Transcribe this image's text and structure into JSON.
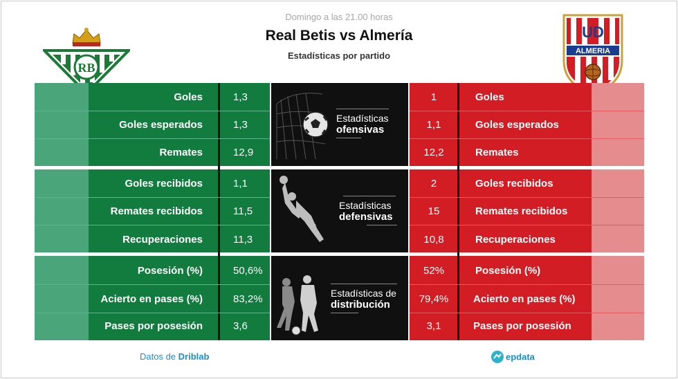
{
  "header": {
    "time": "Domingo a las 21.00 horas",
    "title": "Real Betis vs Almería",
    "subtitle": "Estadísticas por partido"
  },
  "teams": {
    "home": {
      "name": "Real Betis",
      "color": "#127b3e",
      "light_color": "#4ba57a",
      "logo_letters": "RB"
    },
    "away": {
      "name": "Almería",
      "color": "#d11d23",
      "light_color": "#e58c8f",
      "logo_letters": "UD",
      "logo_text": "ALMERIA"
    }
  },
  "sections": [
    {
      "panel_line1": "Estadísticas",
      "panel_line2": "ofensivas",
      "stats": [
        {
          "label": "Goles",
          "home": "1,3",
          "away": "1"
        },
        {
          "label": "Goles esperados",
          "home": "1,3",
          "away": "1,1"
        },
        {
          "label": "Remates",
          "home": "12,9",
          "away": "12,2"
        }
      ]
    },
    {
      "panel_line1": "Estadísticas",
      "panel_line2": "defensivas",
      "stats": [
        {
          "label": "Goles recibidos",
          "home": "1,1",
          "away": "2"
        },
        {
          "label": "Remates recibidos",
          "home": "11,5",
          "away": "15"
        },
        {
          "label": "Recuperaciones",
          "home": "11,3",
          "away": "10,8"
        }
      ]
    },
    {
      "panel_line1": "Estadísticas de",
      "panel_line2": "distribución",
      "stats": [
        {
          "label": "Posesión (%)",
          "home": "50,6%",
          "away": "52%"
        },
        {
          "label": "Acierto en pases (%)",
          "home": "83,2%",
          "away": "79,4%"
        },
        {
          "label": "Pases por posesión",
          "home": "3,6",
          "away": "3,1"
        }
      ]
    }
  ],
  "footer": {
    "left_prefix": "Datos de ",
    "left_brand": "Driblab",
    "right_brand": "epdata"
  }
}
